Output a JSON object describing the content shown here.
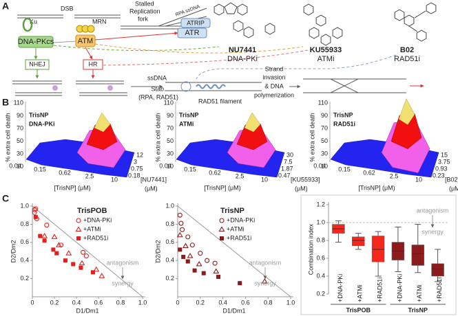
{
  "panel_a": {
    "label": "A",
    "ku": "Ku",
    "dsb": "DSB",
    "mrn": "MRN",
    "fork": [
      "Stalled",
      "Replication",
      "fork"
    ],
    "rpa": "RPA ssDNA",
    "atrip": "ATRIP",
    "atr": "ATR",
    "dnapkcs": "DNA-PKcs",
    "atm": "ATM",
    "nhej": "NHEJ",
    "hr": "HR",
    "ssdna": "ssDNA",
    "stab": [
      "Stab.",
      "(RPA, RAD51)"
    ],
    "filament": "RAD51 filament",
    "invasion": [
      "Strand",
      "invasion",
      "& DNA",
      "polymerization"
    ],
    "drugs": [
      {
        "name": "NU7441",
        "role": "DNA-PKi"
      },
      {
        "name": "KU55933",
        "role": "ATMi"
      },
      {
        "name": "B02",
        "role": "RAD51i"
      }
    ]
  },
  "panel_b": {
    "label": "B",
    "z_label": "% extra cell death",
    "z_ticks": [
      "110",
      "90",
      "70",
      "50",
      "30",
      "10"
    ],
    "x_label": "[TrisNP] (μM)",
    "x_ticks": [
      "0.04",
      "0.15",
      "0.62",
      "2.5",
      "10"
    ],
    "plots": [
      {
        "title": [
          "TrisNP",
          "DNA-PKi"
        ],
        "y_label": [
          "[NU7441]",
          "(μM)"
        ],
        "y_ticks": [
          "0.18",
          "0.75",
          "3",
          "12"
        ]
      },
      {
        "title": [
          "TrisNP",
          "ATMi"
        ],
        "y_label": [
          "[KU55933]",
          "(μM)"
        ],
        "y_ticks": [
          "0.47",
          "1.87",
          "7.5",
          "30"
        ]
      },
      {
        "title": [
          "TrisNP",
          "RAD51i"
        ],
        "y_label": [
          "[B02]",
          "(μM)"
        ],
        "y_ticks": [
          "0.23",
          "0.93",
          "3.75",
          "15"
        ]
      }
    ]
  },
  "panel_c": {
    "label": "C"
  },
  "chart_data": [
    {
      "type": "scatter",
      "title": "TrisPOB",
      "x_label": "D1/Dm1",
      "y_label": "D2/Dm2",
      "xlim": [
        0,
        1
      ],
      "ylim": [
        0,
        1
      ],
      "xticks": [
        0,
        0.2,
        0.4,
        0.6,
        0.8,
        {
          "value": 1,
          "label": "1.0"
        }
      ],
      "yticks": [
        0.2,
        0.4,
        0.6,
        0.8,
        {
          "value": 1,
          "label": "1.0"
        }
      ],
      "annotations": [
        "antagonism",
        "synergy"
      ],
      "series": [
        {
          "name": "+DNA-PKi",
          "color": "#e3201c",
          "marker": "open-circle",
          "x": [
            0.02,
            0.03,
            0.02,
            0.04,
            0.13,
            0.26,
            0.46,
            0.49
          ],
          "y": [
            0.96,
            0.97,
            0.93,
            0.86,
            0.79,
            0.57,
            0.49,
            0.45
          ]
        },
        {
          "name": "+ATMi",
          "color": "#e3201c",
          "marker": "open-triangle",
          "x": [
            0.11,
            0.2,
            0.24,
            0.33,
            0.45,
            0.58,
            0.63
          ],
          "y": [
            0.67,
            0.66,
            0.57,
            0.48,
            0.37,
            0.3,
            0.23
          ]
        },
        {
          "name": "+RAD51i",
          "color": "#e3201c",
          "marker": "square",
          "x": [
            0.03,
            0.07,
            0.11,
            0.19,
            0.22,
            0.3,
            0.37,
            0.44,
            0.55
          ],
          "y": [
            0.88,
            0.67,
            0.62,
            0.52,
            0.48,
            0.4,
            0.36,
            0.32,
            0.27
          ]
        }
      ]
    },
    {
      "type": "scatter",
      "title": "TrisNP",
      "x_label": "D1/Dm1",
      "y_label": "D2/Dm2",
      "xlim": [
        0,
        1
      ],
      "ylim": [
        0,
        1
      ],
      "xticks": [
        0,
        0.2,
        0.4,
        0.6,
        0.8,
        {
          "value": 1,
          "label": "1.0"
        }
      ],
      "yticks": [
        0.2,
        0.4,
        0.6,
        0.8,
        {
          "value": 1,
          "label": "1.0"
        }
      ],
      "annotations": [
        "antagonism",
        "synergy"
      ],
      "series": [
        {
          "name": "+DNA-PKi",
          "color": "#8b1a1a",
          "marker": "open-circle",
          "x": [
            0.02,
            0.03,
            0.04,
            0.09,
            0.13,
            0.2,
            0.26,
            0.33
          ],
          "y": [
            0.9,
            0.81,
            0.74,
            0.66,
            0.57,
            0.48,
            0.4,
            0.37
          ]
        },
        {
          "name": "+ATMi",
          "color": "#8b1a1a",
          "marker": "open-triangle",
          "x": [
            0.02,
            0.07,
            0.11,
            0.19,
            0.34,
            0.77
          ],
          "y": [
            0.68,
            0.56,
            0.45,
            0.36,
            0.28,
            0.17
          ]
        },
        {
          "name": "+RAD51i",
          "color": "#8b1a1a",
          "marker": "square",
          "x": [
            0.02,
            0.05,
            0.09,
            0.15,
            0.23,
            0.36,
            0.55
          ],
          "y": [
            0.52,
            0.44,
            0.39,
            0.29,
            0.26,
            0.22,
            0.15
          ]
        }
      ]
    },
    {
      "type": "box",
      "y_label": "Combination index",
      "ylim": [
        0.2,
        1.2
      ],
      "yticks": [
        0.2,
        0.4,
        0.6,
        0.8,
        {
          "value": 1,
          "label": "1.0"
        },
        1.2
      ],
      "reference_line": 1,
      "annotations": [
        "antagonism",
        "synergy"
      ],
      "groups": [
        {
          "name": "TrisPOB",
          "color": "#f5261b",
          "categories": [
            "+DNA-PKi",
            "+ATMi",
            "+RAD51i"
          ],
          "min": [
            0.78,
            0.7,
            0.4
          ],
          "q1": [
            0.88,
            0.74,
            0.56
          ],
          "median": [
            0.93,
            0.8,
            0.7
          ],
          "q3": [
            0.98,
            0.84,
            0.85
          ],
          "max": [
            1.02,
            0.88,
            0.9
          ]
        },
        {
          "name": "TrisNP",
          "color": "#8e1b1b",
          "categories": [
            "+DNA-PKi",
            "+ATMi",
            "+RAD51i"
          ],
          "min": [
            0.45,
            0.44,
            0.34
          ],
          "q1": [
            0.58,
            0.52,
            0.4
          ],
          "median": [
            0.68,
            0.65,
            0.48
          ],
          "q3": [
            0.78,
            0.75,
            0.54
          ],
          "max": [
            0.95,
            0.98,
            0.7
          ]
        }
      ]
    }
  ]
}
